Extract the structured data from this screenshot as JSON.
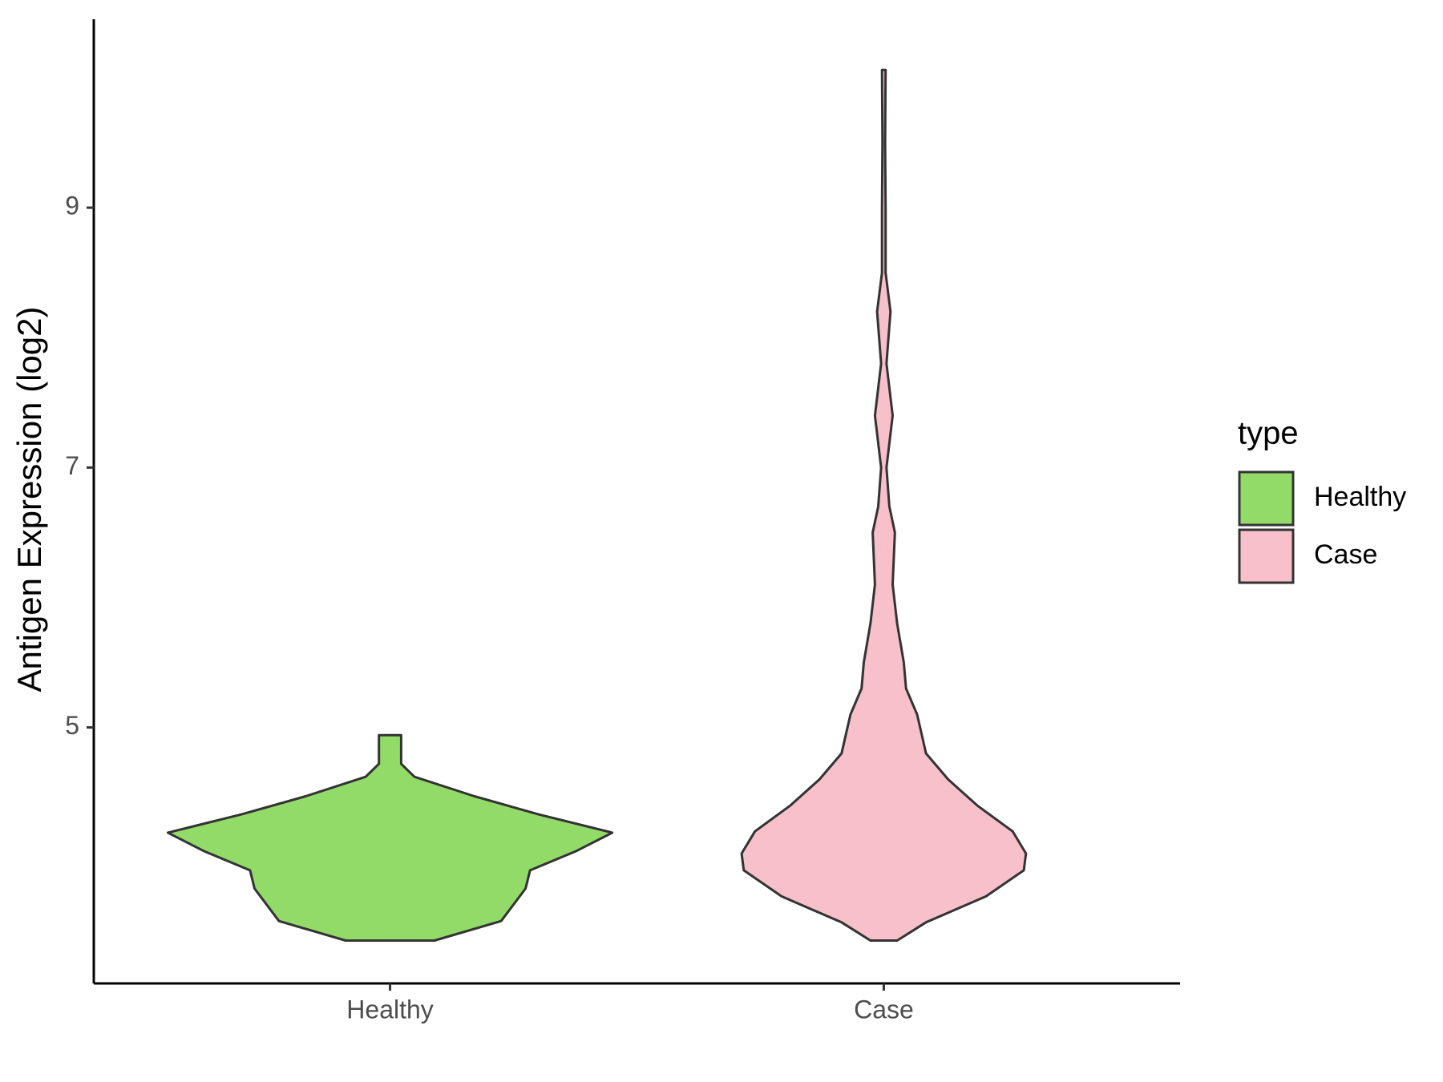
{
  "chart_data": {
    "type": "violin",
    "ylabel": "Antigen Expression (log2)",
    "legend_title": "type",
    "categories": [
      "Healthy",
      "Case"
    ],
    "series": [
      {
        "name": "Healthy",
        "color": "#93db69",
        "y": [
          3.36,
          3.51,
          3.76,
          3.9,
          4.05,
          4.19,
          4.33,
          4.47,
          4.62,
          4.72,
          4.94
        ],
        "width": [
          0.2,
          0.5,
          0.61,
          0.63,
          0.84,
          1.0,
          0.67,
          0.38,
          0.11,
          0.05,
          0.05
        ]
      },
      {
        "name": "Case",
        "color": "#f8c0cb",
        "y": [
          3.36,
          3.5,
          3.7,
          3.9,
          4.03,
          4.2,
          4.4,
          4.6,
          4.8,
          4.95,
          5.1,
          5.3,
          5.5,
          5.8,
          6.1,
          6.5,
          6.7,
          7.0,
          7.4,
          7.8,
          8.2,
          8.5,
          9.0,
          9.5,
          10.06
        ],
        "width": [
          0.06,
          0.19,
          0.46,
          0.63,
          0.64,
          0.58,
          0.42,
          0.29,
          0.19,
          0.17,
          0.15,
          0.1,
          0.09,
          0.06,
          0.04,
          0.05,
          0.025,
          0.012,
          0.04,
          0.012,
          0.03,
          0.008,
          0.008,
          0.006,
          0.008
        ]
      }
    ],
    "ylim": [
      3.03,
      10.45
    ],
    "yticks": [
      5,
      7,
      9
    ]
  }
}
